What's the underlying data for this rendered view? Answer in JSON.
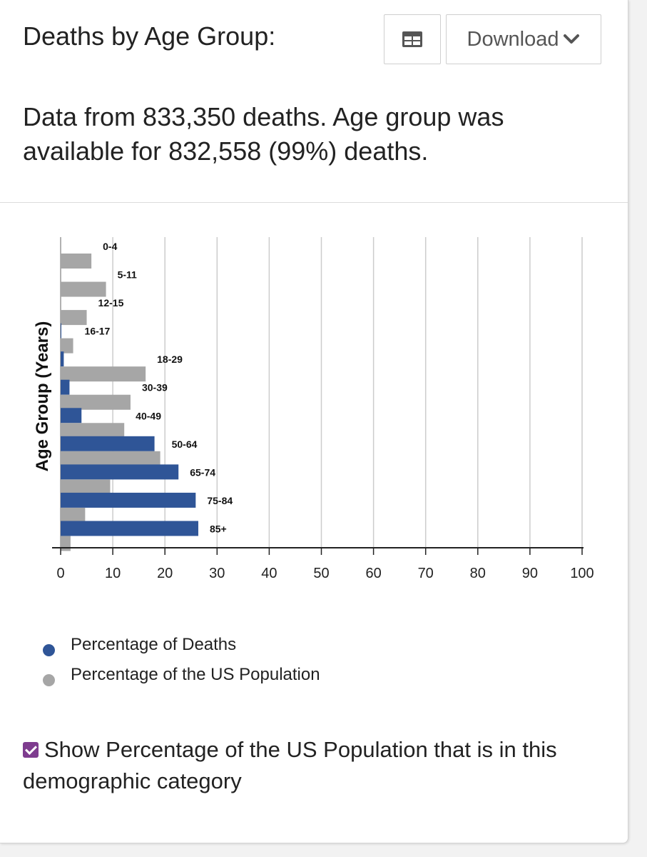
{
  "header": {
    "title": "Deaths by Age Group:",
    "download_label": "Download"
  },
  "description": "Data from 833,350 deaths. Age group was available for 832,558 (99%) deaths.",
  "legend": {
    "deaths": "Percentage of Deaths",
    "population": "Percentage of the US Population"
  },
  "show_population": {
    "checked": true,
    "label": "Show Percentage of the US Population that is in this demographic category"
  },
  "colors": {
    "deaths": "#2f5597",
    "population": "#a6a6a6",
    "checkbox": "#7e3c8f"
  },
  "chart_data": {
    "type": "bar",
    "orientation": "horizontal",
    "title": "",
    "xlabel": "",
    "ylabel": "Age Group (Years)",
    "xlim": [
      0,
      100
    ],
    "xticks": [
      0,
      10,
      20,
      30,
      40,
      50,
      60,
      70,
      80,
      90,
      100
    ],
    "grid": true,
    "legend_position": "bottom",
    "categories": [
      "0-4",
      "5-11",
      "12-15",
      "16-17",
      "18-29",
      "30-39",
      "40-49",
      "50-64",
      "65-74",
      "75-84",
      "85+"
    ],
    "series": [
      {
        "name": "Percentage of Deaths",
        "color": "#2f5597",
        "values": [
          0.0,
          0.0,
          0.0,
          0.1,
          0.6,
          1.7,
          4.0,
          18.0,
          22.6,
          25.9,
          26.4
        ]
      },
      {
        "name": "Percentage of the US Population",
        "color": "#a6a6a6",
        "values": [
          5.9,
          8.7,
          5.0,
          2.4,
          16.3,
          13.4,
          12.2,
          19.1,
          9.5,
          4.7,
          1.9
        ]
      }
    ]
  }
}
